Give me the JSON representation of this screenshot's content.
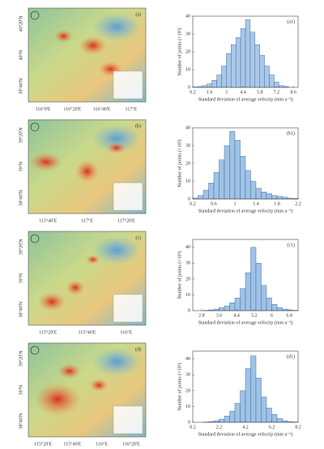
{
  "maps": [
    {
      "label": "(a)",
      "xticks": [
        "116°0'E",
        "116°20'E",
        "116°40'E",
        "117°E"
      ],
      "yticks": [
        "40°20'N",
        "40°N",
        "39°40'N"
      ]
    },
    {
      "label": "(b)",
      "xticks": [
        "115°40'E",
        "117°E",
        "117°20'E"
      ],
      "yticks": [
        "39°20'N",
        "39°N",
        "38°40'N"
      ]
    },
    {
      "label": "(c)",
      "xticks": [
        "115°20'E",
        "115°40'E",
        "116°E"
      ],
      "yticks": [
        "39°20'N",
        "39°N",
        "38°40'N"
      ]
    },
    {
      "label": "(d)",
      "xticks": [
        "115°20'E",
        "115°40'E",
        "116°E",
        "116°20'E"
      ],
      "yticks": [
        "39°20'N",
        "39°N",
        "38°40'N"
      ]
    }
  ],
  "chart_data": [
    {
      "type": "histogram",
      "title": "(a1)",
      "x_label": "Standard deviation of average velocity (mm a⁻¹)",
      "y_label": "Number of points (×10³)",
      "bins": [
        0.2,
        0.6,
        1.0,
        1.4,
        1.8,
        2.2,
        2.6,
        3.0,
        3.4,
        3.8,
        4.2,
        4.6,
        5.0,
        5.4,
        5.8,
        6.2,
        6.6,
        7.0,
        7.4,
        7.8,
        8.2
      ],
      "values": [
        0.2,
        0.5,
        1,
        2,
        4,
        7,
        12,
        19,
        24,
        28,
        33,
        38,
        31,
        24,
        18,
        12,
        7,
        3,
        1,
        0.5
      ],
      "color": "#a9c8e8",
      "xlim": [
        0.2,
        9.0
      ],
      "xticks": [
        0.2,
        1.6,
        3.0,
        4.4,
        5.8,
        7.2,
        8.6
      ],
      "ylim": [
        0,
        40
      ],
      "yticks": [
        0,
        10,
        20,
        30,
        40
      ]
    },
    {
      "type": "histogram",
      "title": "(b1)",
      "x_label": "Standard deviation of average velocity (mm a⁻¹)",
      "y_label": "Number of points (×10³)",
      "bins": [
        0.2,
        0.3,
        0.4,
        0.5,
        0.6,
        0.7,
        0.8,
        0.9,
        1.0,
        1.1,
        1.2,
        1.3,
        1.4,
        1.5,
        1.6,
        1.7,
        1.8,
        1.9,
        2.0,
        2.1,
        2.2
      ],
      "values": [
        0.5,
        2,
        5,
        9,
        15,
        22,
        30,
        38,
        33,
        24,
        16,
        10,
        6,
        4,
        3,
        2,
        1.5,
        1,
        0.5,
        0.3
      ],
      "color": "#9fc2e6",
      "xlim": [
        0.2,
        2.2
      ],
      "xticks": [
        0.2,
        0.6,
        1.0,
        1.4,
        1.8,
        2.2
      ],
      "ylim": [
        0,
        40
      ],
      "yticks": [
        0,
        10,
        20,
        30,
        40
      ]
    },
    {
      "type": "histogram",
      "title": "(c1)",
      "x_label": "Standard deviation of average velocity (mm a⁻¹)",
      "y_label": "Number of points (×10³)",
      "bins": [
        2.4,
        2.64,
        2.88,
        3.12,
        3.36,
        3.6,
        3.84,
        4.08,
        4.32,
        4.56,
        4.8,
        5.04,
        5.28,
        5.52,
        5.76,
        6.0,
        6.24,
        6.48,
        6.72,
        6.96,
        7.2
      ],
      "values": [
        0,
        0,
        0.2,
        0.5,
        1,
        2,
        3,
        5,
        8,
        14,
        24,
        40,
        30,
        16,
        8,
        4,
        2,
        1,
        0.5,
        0.2
      ],
      "color": "#9fc2e6",
      "xlim": [
        2.4,
        7.2
      ],
      "xticks": [
        2.8,
        3.6,
        4.4,
        5.2,
        6.0,
        6.8
      ],
      "ylim": [
        0,
        45
      ],
      "yticks": [
        0,
        10,
        20,
        30,
        40
      ]
    },
    {
      "type": "histogram",
      "title": "(d1)",
      "x_label": "Standard deviation of average velocity (mm a⁻¹)",
      "y_label": "Number of points (×10³)",
      "bins": [
        0.2,
        0.6,
        1.0,
        1.4,
        1.8,
        2.2,
        2.6,
        3.0,
        3.4,
        3.8,
        4.2,
        4.6,
        5.0,
        5.4,
        5.8,
        6.2,
        6.6,
        7.0,
        7.4,
        7.8,
        8.2
      ],
      "values": [
        0,
        0,
        0.2,
        0.5,
        1,
        2,
        4,
        7,
        12,
        20,
        34,
        42,
        28,
        16,
        9,
        5,
        2.5,
        1,
        0.5,
        0.2
      ],
      "color": "#9fc2e6",
      "xlim": [
        0.2,
        8.2
      ],
      "xticks": [
        0.2,
        2.2,
        4.2,
        6.2,
        8.2
      ],
      "ylim": [
        0,
        45
      ],
      "yticks": [
        0,
        10,
        20,
        30,
        40
      ]
    }
  ]
}
